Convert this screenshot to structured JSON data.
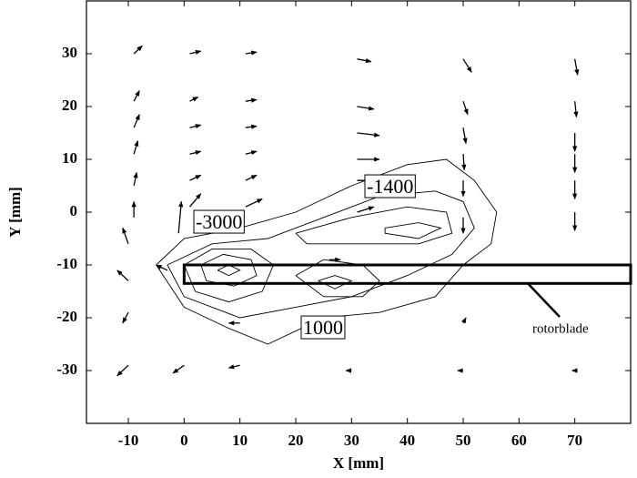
{
  "chart_data": {
    "type": "quiver",
    "xlabel": "X [mm]",
    "ylabel": "Y [mm]",
    "xlim": [
      -17.5,
      80
    ],
    "ylim": [
      -40,
      40
    ],
    "xticks": [
      -10,
      0,
      10,
      20,
      30,
      40,
      50,
      60,
      70
    ],
    "yticks": [
      -30,
      -20,
      -10,
      0,
      10,
      20,
      30
    ],
    "color": "#000000",
    "x": [
      -9,
      1,
      11,
      31,
      50,
      70,
      -9,
      1,
      11,
      31,
      50,
      70,
      -9,
      1,
      11,
      31,
      50,
      70,
      -9,
      1,
      11,
      31,
      50,
      70,
      -9,
      1,
      11,
      31,
      50,
      70,
      -9,
      1,
      11,
      31,
      50,
      70,
      -10,
      -1,
      -10,
      -3,
      -10,
      -10,
      0,
      10,
      30,
      50,
      70,
      50,
      10,
      26
    ],
    "y": [
      30,
      30,
      30,
      29,
      29,
      29,
      21,
      21,
      21,
      20,
      21,
      21,
      16,
      16,
      16,
      15,
      16,
      15,
      11,
      11,
      11,
      10,
      11,
      11,
      5,
      6,
      6,
      6,
      6,
      6,
      -1,
      1,
      1,
      0,
      -1,
      0,
      -6,
      -4,
      -13,
      -11,
      -19,
      -29,
      -29,
      -29,
      -30,
      -30,
      -30,
      -21,
      -21,
      -9
    ],
    "u": [
      1.5,
      2,
      2,
      2.5,
      1.5,
      0.5,
      1,
      1.5,
      2,
      3,
      0.8,
      0.3,
      1,
      2,
      2,
      4,
      0.5,
      0,
      0.7,
      2,
      2,
      4,
      0.2,
      0,
      0.5,
      2,
      2,
      4,
      0,
      0,
      0,
      2,
      3,
      3,
      0,
      0,
      -1,
      0.5,
      -2,
      -2,
      -1,
      -2,
      -2,
      -2,
      -1,
      -1,
      -0.5,
      0.5,
      -2,
      2
    ],
    "v": [
      1.5,
      0.5,
      0.3,
      -0.5,
      -2.5,
      -3,
      2,
      0.8,
      0.3,
      -0.5,
      -2.5,
      -3,
      2.5,
      0.5,
      0.3,
      -0.5,
      -3,
      -3.5,
      2.5,
      0.5,
      0.5,
      0,
      -3,
      -3.5,
      2.5,
      1,
      1,
      0,
      -3,
      -3.5,
      3,
      2.5,
      1.5,
      1,
      -3,
      -3.5,
      3,
      6,
      2,
      1,
      -2,
      -2,
      -1.5,
      -0.5,
      0,
      0,
      0,
      1,
      0,
      0
    ],
    "contours": [
      {
        "x": [
          -5,
          0,
          10,
          20,
          30,
          40,
          47,
          52,
          56,
          55,
          50,
          45,
          35,
          25,
          15,
          8,
          0,
          -5
        ],
        "y": [
          -10,
          -5,
          -3,
          0,
          5,
          9,
          10,
          6,
          0,
          -6,
          -10,
          -16,
          -19,
          -20,
          -25,
          -22,
          -18,
          -10
        ]
      },
      {
        "x": [
          -3,
          5,
          15,
          25,
          35,
          45,
          50,
          52,
          48,
          40,
          30,
          20,
          10,
          0,
          -3
        ],
        "y": [
          -10,
          -6,
          -5,
          -1,
          3,
          4,
          2,
          -3,
          -8,
          -12,
          -16,
          -18,
          -20,
          -16,
          -10
        ]
      },
      {
        "x": [
          20,
          30,
          40,
          47,
          48,
          42,
          30,
          22,
          20
        ],
        "y": [
          -4,
          -1,
          1,
          0,
          -4,
          -6,
          -6,
          -6,
          -4
        ]
      },
      {
        "x": [
          36,
          42,
          46,
          42,
          36,
          36
        ],
        "y": [
          -3,
          -2,
          -3,
          -5,
          -4,
          -3
        ]
      },
      {
        "x": [
          0,
          5,
          12,
          16,
          14,
          8,
          2,
          0
        ],
        "y": [
          -10,
          -7,
          -7,
          -10,
          -15,
          -17,
          -15,
          -10
        ]
      },
      {
        "x": [
          3,
          7,
          12,
          13,
          9,
          4,
          3
        ],
        "y": [
          -10,
          -8,
          -9,
          -12,
          -14,
          -13,
          -10
        ]
      },
      {
        "x": [
          6,
          8,
          10,
          8,
          6
        ],
        "y": [
          -11,
          -10,
          -11,
          -12,
          -11
        ]
      },
      {
        "x": [
          20,
          25,
          32,
          35,
          32,
          25,
          20
        ],
        "y": [
          -12,
          -9,
          -10,
          -13,
          -16,
          -16,
          -12
        ]
      },
      {
        "x": [
          24,
          27,
          30,
          27,
          24
        ],
        "y": [
          -13,
          -12,
          -13,
          -14.5,
          -13
        ]
      }
    ],
    "contour_labels": [
      "-3000",
      "-1400",
      "1000"
    ],
    "blade_label": "rotorblade",
    "blade_x": [
      0,
      80
    ],
    "blade_y": [
      -13.5,
      -10
    ]
  }
}
